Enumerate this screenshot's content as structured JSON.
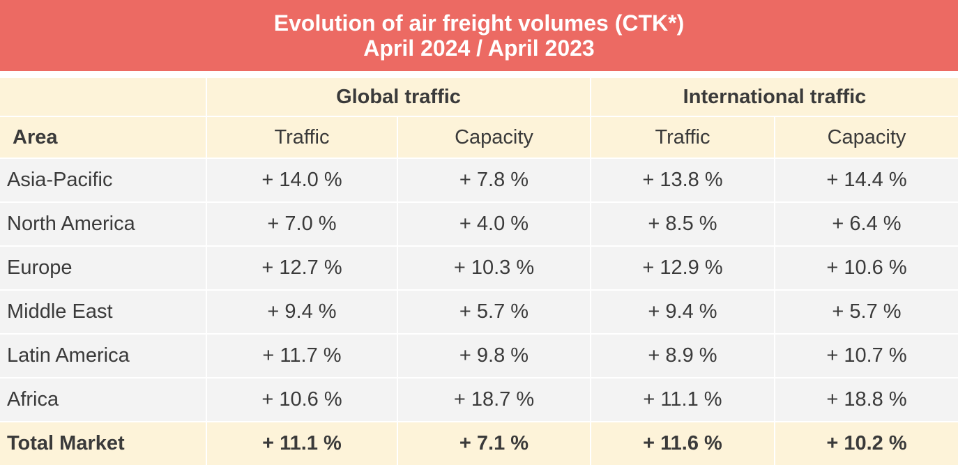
{
  "title": "Evolution of air freight volumes (CTK*)",
  "subtitle": "April 2024 / April 2023",
  "chart_data": {
    "type": "table",
    "title": "Evolution of air freight volumes (CTK*)",
    "subtitle": "April 2024 / April 2023",
    "group_headers": [
      "Global traffic",
      "International traffic"
    ],
    "columns": [
      "Area",
      "Traffic",
      "Capacity",
      "Traffic",
      "Capacity"
    ],
    "rows": [
      [
        "Asia-Pacific",
        "+ 14.0 %",
        "+ 7.8 %",
        "+ 13.8 %",
        "+ 14.4 %"
      ],
      [
        "North America",
        "+ 7.0 %",
        "+ 4.0 %",
        "+ 8.5 %",
        "+ 6.4 %"
      ],
      [
        "Europe",
        "+ 12.7 %",
        "+ 10.3 %",
        "+ 12.9 %",
        "+ 10.6 %"
      ],
      [
        "Middle East",
        "+ 9.4 %",
        "+ 5.7 %",
        "+ 9.4 %",
        "+ 5.7 %"
      ],
      [
        "Latin America",
        "+ 11.7 %",
        "+ 9.8 %",
        "+ 8.9 %",
        "+ 10.7 %"
      ],
      [
        "Africa",
        "+ 10.6 %",
        "+ 18.7 %",
        "+ 11.1 %",
        "+ 18.8 %"
      ],
      [
        "Total Market",
        "+ 11.1 %",
        "+ 7.1 %",
        "+ 11.6 %",
        "+ 10.2 %"
      ]
    ]
  },
  "colors": {
    "title_bg": "#ec6a63",
    "header_bg": "#fdf3d9",
    "cell_bg": "#f3f3f3"
  }
}
